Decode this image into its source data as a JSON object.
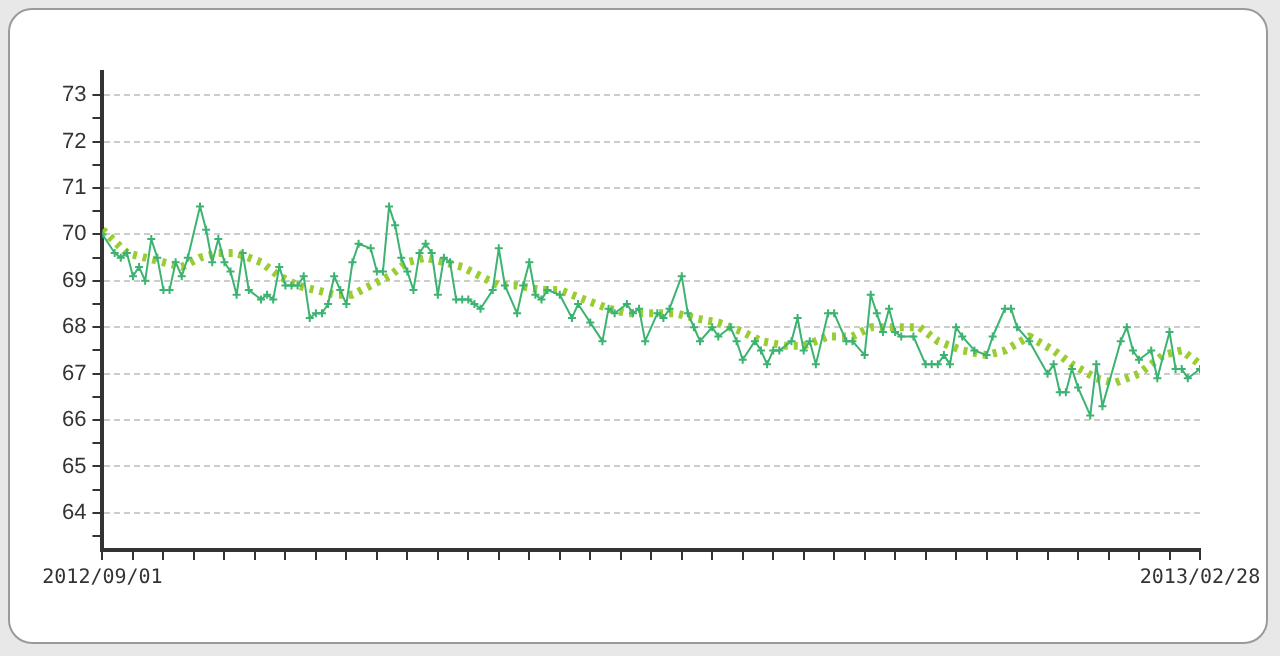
{
  "chart_data": {
    "type": "line",
    "series": [
      {
        "color": "#3cb371",
        "marker": "cross",
        "line_style": "solid",
        "x": [
          "2012-09-01",
          "2012-09-03",
          "2012-09-04",
          "2012-09-05",
          "2012-09-06",
          "2012-09-07",
          "2012-09-08",
          "2012-09-09",
          "2012-09-10",
          "2012-09-11",
          "2012-09-12",
          "2012-09-13",
          "2012-09-14",
          "2012-09-15",
          "2012-09-17",
          "2012-09-18",
          "2012-09-19",
          "2012-09-20",
          "2012-09-21",
          "2012-09-22",
          "2012-09-23",
          "2012-09-24",
          "2012-09-25",
          "2012-09-27",
          "2012-09-28",
          "2012-09-29",
          "2012-09-30",
          "2012-10-01",
          "2012-10-02",
          "2012-10-03",
          "2012-10-04",
          "2012-10-05",
          "2012-10-06",
          "2012-10-07",
          "2012-10-08",
          "2012-10-09",
          "2012-10-10",
          "2012-10-11",
          "2012-10-12",
          "2012-10-13",
          "2012-10-15",
          "2012-10-16",
          "2012-10-17",
          "2012-10-18",
          "2012-10-19",
          "2012-10-20",
          "2012-10-21",
          "2012-10-22",
          "2012-10-23",
          "2012-10-24",
          "2012-10-25",
          "2012-10-26",
          "2012-10-27",
          "2012-10-28",
          "2012-10-29",
          "2012-10-30",
          "2012-10-31",
          "2012-11-01",
          "2012-11-02",
          "2012-11-04",
          "2012-11-05",
          "2012-11-06",
          "2012-11-08",
          "2012-11-09",
          "2012-11-10",
          "2012-11-11",
          "2012-11-12",
          "2012-11-13",
          "2012-11-15",
          "2012-11-17",
          "2012-11-18",
          "2012-11-20",
          "2012-11-22",
          "2012-11-23",
          "2012-11-24",
          "2012-11-26",
          "2012-11-27",
          "2012-11-28",
          "2012-11-29",
          "2012-12-01",
          "2012-12-02",
          "2012-12-03",
          "2012-12-05",
          "2012-12-06",
          "2012-12-07",
          "2012-12-08",
          "2012-12-10",
          "2012-12-11",
          "2012-12-13",
          "2012-12-14",
          "2012-12-15",
          "2012-12-17",
          "2012-12-18",
          "2012-12-19",
          "2012-12-20",
          "2012-12-21",
          "2012-12-23",
          "2012-12-24",
          "2012-12-25",
          "2012-12-26",
          "2012-12-27",
          "2012-12-29",
          "2012-12-30",
          "2013-01-01",
          "2013-01-02",
          "2013-01-04",
          "2013-01-05",
          "2013-01-06",
          "2013-01-07",
          "2013-01-08",
          "2013-01-09",
          "2013-01-10",
          "2013-01-12",
          "2013-01-14",
          "2013-01-15",
          "2013-01-16",
          "2013-01-17",
          "2013-01-18",
          "2013-01-19",
          "2013-01-20",
          "2013-01-22",
          "2013-01-24",
          "2013-01-25",
          "2013-01-27",
          "2013-01-28",
          "2013-01-29",
          "2013-01-31",
          "2013-02-03",
          "2013-02-04",
          "2013-02-05",
          "2013-02-06",
          "2013-02-07",
          "2013-02-08",
          "2013-02-10",
          "2013-02-11",
          "2013-02-12",
          "2013-02-15",
          "2013-02-16",
          "2013-02-17",
          "2013-02-18",
          "2013-02-20",
          "2013-02-21",
          "2013-02-23",
          "2013-02-24",
          "2013-02-25",
          "2013-02-26",
          "2013-02-28"
        ],
        "values": [
          70.0,
          69.6,
          69.5,
          69.6,
          69.1,
          69.3,
          69.0,
          69.9,
          69.5,
          68.8,
          68.8,
          69.4,
          69.1,
          69.5,
          70.6,
          70.1,
          69.4,
          69.9,
          69.4,
          69.2,
          68.7,
          69.6,
          68.8,
          68.6,
          68.7,
          68.6,
          69.3,
          68.9,
          68.9,
          68.9,
          69.1,
          68.2,
          68.3,
          68.3,
          68.5,
          69.1,
          68.8,
          68.5,
          69.4,
          69.8,
          69.7,
          69.2,
          69.2,
          70.6,
          70.2,
          69.5,
          69.2,
          68.8,
          69.6,
          69.8,
          69.6,
          68.7,
          69.5,
          69.4,
          68.6,
          68.6,
          68.6,
          68.5,
          68.4,
          68.8,
          69.7,
          68.9,
          68.3,
          68.9,
          69.4,
          68.7,
          68.6,
          68.8,
          68.7,
          68.2,
          68.5,
          68.1,
          67.7,
          68.4,
          68.3,
          68.5,
          68.3,
          68.4,
          67.7,
          68.3,
          68.2,
          68.4,
          69.1,
          68.3,
          68.0,
          67.7,
          68.0,
          67.8,
          68.0,
          67.7,
          67.3,
          67.7,
          67.5,
          67.2,
          67.5,
          67.5,
          67.7,
          68.2,
          67.5,
          67.7,
          67.2,
          68.3,
          68.3,
          67.7,
          67.7,
          67.4,
          68.7,
          68.3,
          67.9,
          68.4,
          67.9,
          67.8,
          67.8,
          67.2,
          67.2,
          67.2,
          67.4,
          67.2,
          68.0,
          67.8,
          67.5,
          67.4,
          67.8,
          68.4,
          68.4,
          68.0,
          67.7,
          67.0,
          67.2,
          66.6,
          66.6,
          67.1,
          66.7,
          66.1,
          67.2,
          66.3,
          67.7,
          68.0,
          67.5,
          67.3,
          67.5,
          66.9,
          67.9,
          67.1,
          67.1,
          66.9,
          67.1
        ]
      },
      {
        "color": "#9acd32",
        "marker": "none",
        "line_style": "dotted",
        "x": [
          "2012-09-01",
          "2012-09-05",
          "2012-09-08",
          "2012-09-11",
          "2012-09-14",
          "2012-09-17",
          "2012-09-20",
          "2012-09-23",
          "2012-09-27",
          "2012-09-30",
          "2012-10-03",
          "2012-10-06",
          "2012-10-09",
          "2012-10-12",
          "2012-10-15",
          "2012-10-18",
          "2012-10-21",
          "2012-10-24",
          "2012-10-27",
          "2012-10-30",
          "2012-11-02",
          "2012-11-05",
          "2012-11-08",
          "2012-11-12",
          "2012-11-15",
          "2012-11-19",
          "2012-11-23",
          "2012-11-26",
          "2012-11-30",
          "2012-12-04",
          "2012-12-07",
          "2012-12-11",
          "2012-12-15",
          "2012-12-18",
          "2012-12-22",
          "2012-12-25",
          "2012-12-29",
          "2013-01-02",
          "2013-01-05",
          "2013-01-09",
          "2013-01-13",
          "2013-01-16",
          "2013-01-20",
          "2013-01-24",
          "2013-01-27",
          "2013-01-31",
          "2013-02-04",
          "2013-02-07",
          "2013-02-11",
          "2013-02-14",
          "2013-02-18",
          "2013-02-22",
          "2013-02-25",
          "2013-02-28"
        ],
        "values": [
          70.1,
          69.6,
          69.5,
          69.4,
          69.3,
          69.5,
          69.6,
          69.6,
          69.4,
          69.1,
          68.9,
          68.8,
          68.7,
          68.7,
          68.9,
          69.1,
          69.4,
          69.5,
          69.4,
          69.3,
          69.1,
          68.9,
          68.9,
          68.8,
          68.8,
          68.6,
          68.4,
          68.3,
          68.3,
          68.3,
          68.2,
          68.1,
          67.9,
          67.7,
          67.6,
          67.6,
          67.8,
          67.8,
          68.0,
          68.0,
          68.0,
          67.7,
          67.5,
          67.4,
          67.5,
          67.8,
          67.5,
          67.2,
          66.9,
          66.8,
          67.0,
          67.4,
          67.5,
          67.2
        ]
      }
    ],
    "xlim": [
      "2012-09-01",
      "2013-02-28"
    ],
    "xticks": [
      {
        "value": "2012-09-01",
        "label": "2012/09/01"
      },
      {
        "value": "2012-09-06",
        "label": null
      },
      {
        "value": "2012-09-11",
        "label": null
      },
      {
        "value": "2012-09-16",
        "label": null
      },
      {
        "value": "2012-09-21",
        "label": null
      },
      {
        "value": "2012-09-26",
        "label": null
      },
      {
        "value": "2012-10-01",
        "label": null
      },
      {
        "value": "2012-10-06",
        "label": null
      },
      {
        "value": "2012-10-11",
        "label": null
      },
      {
        "value": "2012-10-16",
        "label": null
      },
      {
        "value": "2012-10-21",
        "label": null
      },
      {
        "value": "2012-10-26",
        "label": null
      },
      {
        "value": "2012-10-31",
        "label": null
      },
      {
        "value": "2012-11-05",
        "label": null
      },
      {
        "value": "2012-11-10",
        "label": null
      },
      {
        "value": "2012-11-15",
        "label": null
      },
      {
        "value": "2012-11-20",
        "label": null
      },
      {
        "value": "2012-11-25",
        "label": null
      },
      {
        "value": "2012-11-30",
        "label": null
      },
      {
        "value": "2012-12-05",
        "label": null
      },
      {
        "value": "2012-12-10",
        "label": null
      },
      {
        "value": "2012-12-15",
        "label": null
      },
      {
        "value": "2012-12-20",
        "label": null
      },
      {
        "value": "2012-12-25",
        "label": null
      },
      {
        "value": "2012-12-30",
        "label": null
      },
      {
        "value": "2013-01-04",
        "label": null
      },
      {
        "value": "2013-01-09",
        "label": null
      },
      {
        "value": "2013-01-14",
        "label": null
      },
      {
        "value": "2013-01-19",
        "label": null
      },
      {
        "value": "2013-01-24",
        "label": null
      },
      {
        "value": "2013-01-29",
        "label": null
      },
      {
        "value": "2013-02-03",
        "label": null
      },
      {
        "value": "2013-02-08",
        "label": null
      },
      {
        "value": "2013-02-13",
        "label": null
      },
      {
        "value": "2013-02-18",
        "label": null
      },
      {
        "value": "2013-02-23",
        "label": null
      },
      {
        "value": "2013-02-28",
        "label": "2013/02/28"
      }
    ],
    "ylim": [
      63.2,
      73.5
    ],
    "yticks": [
      {
        "value": 63.5,
        "label": null
      },
      64,
      {
        "value": 64.5,
        "label": null
      },
      65,
      {
        "value": 65.5,
        "label": null
      },
      66,
      {
        "value": 66.5,
        "label": null
      },
      67,
      {
        "value": 67.5,
        "label": null
      },
      68,
      {
        "value": 68.5,
        "label": null
      },
      69,
      {
        "value": 69.5,
        "label": null
      },
      70,
      {
        "value": 70.5,
        "label": null
      },
      71,
      {
        "value": 71.5,
        "label": null
      },
      72,
      {
        "value": 72.5,
        "label": null
      },
      73
    ],
    "grid": "y",
    "legend": false
  }
}
